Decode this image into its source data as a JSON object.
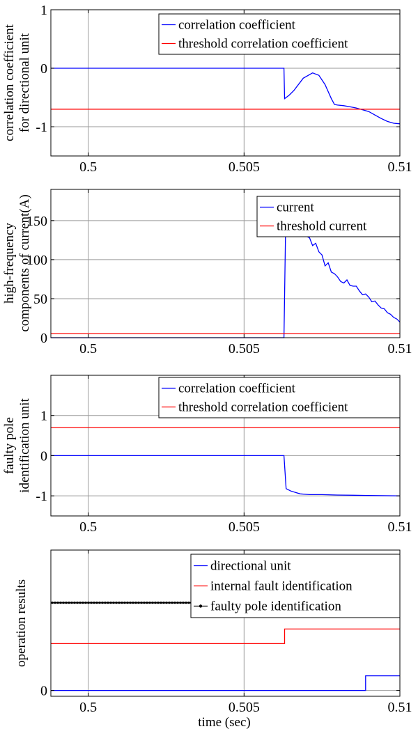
{
  "figure": {
    "xlabel": "time (sec)"
  },
  "chart_data": [
    {
      "type": "line",
      "ylabel": [
        "correlation coefficient",
        "for directional unit"
      ],
      "xlim": [
        0.4988,
        0.51
      ],
      "ylim": [
        -1.5,
        1
      ],
      "xticks": [
        0.5,
        0.505,
        0.51
      ],
      "xtick_labels": [
        "0.5",
        "0.505",
        "0.51"
      ],
      "yticks": [
        -1,
        0,
        1
      ],
      "ytick_labels": [
        "-1",
        "0",
        "1"
      ],
      "grid": true,
      "legend_position": "top-right",
      "series": [
        {
          "name": "correlation coefficient",
          "color": "#0000ff",
          "marker": "none",
          "x": [
            0.4988,
            0.50628,
            0.5063,
            0.50645,
            0.5066,
            0.5069,
            0.5072,
            0.5074,
            0.5076,
            0.5078,
            0.5079,
            0.508,
            0.5082,
            0.5084,
            0.5086,
            0.5088,
            0.509,
            0.5092,
            0.5094,
            0.5096,
            0.5098,
            0.51
          ],
          "y": [
            0,
            0,
            -0.52,
            -0.46,
            -0.38,
            -0.17,
            -0.08,
            -0.12,
            -0.28,
            -0.52,
            -0.62,
            -0.63,
            -0.64,
            -0.66,
            -0.68,
            -0.71,
            -0.74,
            -0.8,
            -0.86,
            -0.91,
            -0.94,
            -0.95
          ]
        },
        {
          "name": "threshold correlation coefficient",
          "color": "#ff0000",
          "marker": "none",
          "x": [
            0.4988,
            0.51
          ],
          "y": [
            -0.7,
            -0.7
          ]
        }
      ]
    },
    {
      "type": "line",
      "ylabel": [
        "high-frequency",
        "components of current(A)"
      ],
      "xlim": [
        0.4988,
        0.51
      ],
      "ylim": [
        0,
        190
      ],
      "xticks": [
        0.5,
        0.505,
        0.51
      ],
      "xtick_labels": [
        "0.5",
        "0.505",
        "0.51"
      ],
      "yticks": [
        0,
        50,
        100,
        150
      ],
      "ytick_labels": [
        "0",
        "50",
        "100",
        "150"
      ],
      "grid": true,
      "legend_position": "top-right",
      "series": [
        {
          "name": "current",
          "color": "#0000ff",
          "marker": "none",
          "x": [
            0.4988,
            0.50628,
            0.50633,
            0.5064,
            0.5066,
            0.5068,
            0.5069,
            0.507,
            0.5071,
            0.5072,
            0.5073,
            0.5074,
            0.5075,
            0.5076,
            0.5077,
            0.5078,
            0.5079,
            0.508,
            0.5081,
            0.5082,
            0.5083,
            0.5084,
            0.5085,
            0.5086,
            0.5087,
            0.5088,
            0.5089,
            0.509,
            0.5091,
            0.5092,
            0.5093,
            0.5094,
            0.5095,
            0.5096,
            0.5097,
            0.5098,
            0.5099,
            0.51
          ],
          "y": [
            0,
            0,
            132,
            135,
            136,
            139,
            136,
            130,
            128,
            118,
            121,
            110,
            106,
            92,
            96,
            84,
            82,
            78,
            72,
            70,
            74,
            67,
            66,
            66,
            60,
            55,
            56,
            52,
            46,
            47,
            42,
            38,
            37,
            32,
            30,
            26,
            24,
            20
          ]
        },
        {
          "name": "threshold current",
          "color": "#ff0000",
          "marker": "none",
          "x": [
            0.4988,
            0.51
          ],
          "y": [
            5,
            5
          ]
        }
      ]
    },
    {
      "type": "line",
      "ylabel": [
        "faulty pole",
        "identification unit"
      ],
      "xlim": [
        0.4988,
        0.51
      ],
      "ylim": [
        -1.5,
        2
      ],
      "xticks": [
        0.5,
        0.505,
        0.51
      ],
      "xtick_labels": [
        "0.5",
        "0.505",
        "0.51"
      ],
      "yticks": [
        -1,
        0,
        1
      ],
      "ytick_labels": [
        "-1",
        "0",
        "1"
      ],
      "grid": true,
      "legend_position": "top-right",
      "series": [
        {
          "name": "correlation coefficient",
          "color": "#0000ff",
          "marker": "none",
          "x": [
            0.4988,
            0.50628,
            0.50635,
            0.5065,
            0.5068,
            0.5071,
            0.5075,
            0.508,
            0.509,
            0.51
          ],
          "y": [
            0,
            0,
            -0.82,
            -0.88,
            -0.95,
            -0.97,
            -0.97,
            -0.98,
            -0.99,
            -1.0
          ]
        },
        {
          "name": "threshold correlation coefficient",
          "color": "#ff0000",
          "marker": "none",
          "x": [
            0.4988,
            0.51
          ],
          "y": [
            0.7,
            0.7
          ]
        }
      ]
    },
    {
      "type": "line",
      "ylabel": [
        "operation results"
      ],
      "xlim": [
        0.4988,
        0.51
      ],
      "ylim": [
        -0.1,
        2.4
      ],
      "xticks": [
        0.5,
        0.505,
        0.51
      ],
      "xtick_labels": [
        "0.5",
        "0.505",
        "0.51"
      ],
      "yticks": [
        0
      ],
      "ytick_labels": [
        "0"
      ],
      "grid": true,
      "legend_position": "top-right",
      "series": [
        {
          "name": "directional unit",
          "color": "#0000ff",
          "marker": "none",
          "x": [
            0.4988,
            0.5089,
            0.5089,
            0.51
          ],
          "y": [
            0,
            0,
            0.25,
            0.25
          ]
        },
        {
          "name": "internal fault identification",
          "color": "#ff0000",
          "marker": "none",
          "x": [
            0.4988,
            0.5063,
            0.5063,
            0.51
          ],
          "y": [
            0.8,
            0.8,
            1.05,
            1.05
          ]
        },
        {
          "name": "faulty pole identification",
          "color": "#000000",
          "marker": "dot",
          "x": [
            0.4988,
            0.51
          ],
          "y": [
            1.5,
            1.5
          ]
        }
      ]
    }
  ]
}
